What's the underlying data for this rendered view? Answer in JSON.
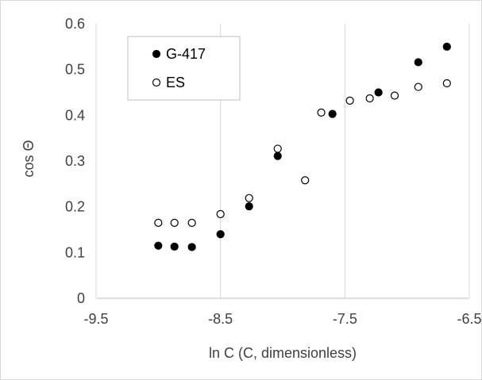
{
  "chart_data": {
    "type": "scatter",
    "xlabel": "ln C (C, dimensionless)",
    "ylabel": "cos Θ",
    "xlim": [
      -9.5,
      -6.5
    ],
    "ylim": [
      0,
      0.6
    ],
    "x_ticks": [
      "-9.5",
      "-8.5",
      "-7.5",
      "-6.5"
    ],
    "y_ticks": [
      "0",
      "0.1",
      "0.2",
      "0.3",
      "0.4",
      "0.5",
      "0.6"
    ],
    "grid": "vertical major gridlines",
    "legend_position": "top-left",
    "series": [
      {
        "name": "G-417",
        "marker": "filled-circle",
        "color": "#000000",
        "points": [
          {
            "x": -9.0,
            "y": 0.115
          },
          {
            "x": -8.87,
            "y": 0.113
          },
          {
            "x": -8.73,
            "y": 0.112
          },
          {
            "x": -8.5,
            "y": 0.14
          },
          {
            "x": -8.27,
            "y": 0.201
          },
          {
            "x": -8.04,
            "y": 0.311
          },
          {
            "x": -7.6,
            "y": 0.403
          },
          {
            "x": -7.23,
            "y": 0.45
          },
          {
            "x": -6.91,
            "y": 0.516
          },
          {
            "x": -6.68,
            "y": 0.55
          }
        ]
      },
      {
        "name": "ES",
        "marker": "open-circle",
        "color": "#000000",
        "points": [
          {
            "x": -9.0,
            "y": 0.165
          },
          {
            "x": -8.87,
            "y": 0.165
          },
          {
            "x": -8.73,
            "y": 0.165
          },
          {
            "x": -8.5,
            "y": 0.184
          },
          {
            "x": -8.27,
            "y": 0.219
          },
          {
            "x": -8.04,
            "y": 0.327
          },
          {
            "x": -7.82,
            "y": 0.258
          },
          {
            "x": -7.69,
            "y": 0.406
          },
          {
            "x": -7.46,
            "y": 0.432
          },
          {
            "x": -7.3,
            "y": 0.437
          },
          {
            "x": -7.1,
            "y": 0.443
          },
          {
            "x": -6.91,
            "y": 0.462
          },
          {
            "x": -6.68,
            "y": 0.47
          }
        ]
      }
    ]
  }
}
